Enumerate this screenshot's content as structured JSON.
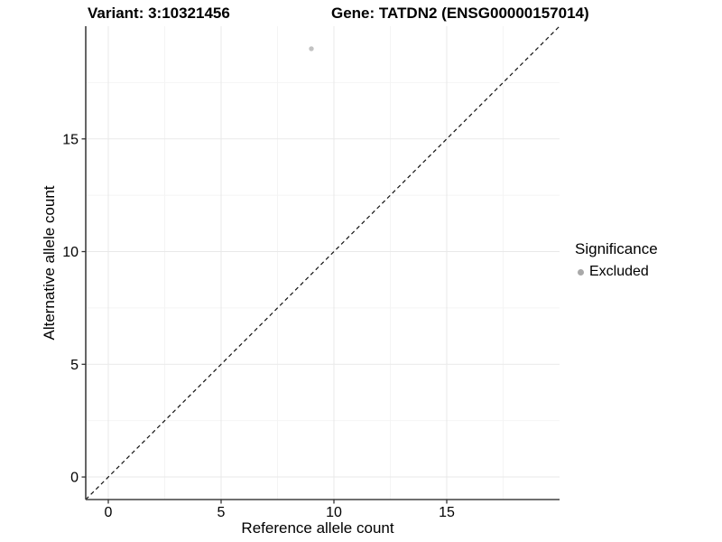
{
  "chart_data": {
    "type": "scatter",
    "titles": {
      "variant": "Variant: 3:10321456",
      "gene": "Gene: TATDN2 (ENSG00000157014)"
    },
    "xlabel": "Reference allele count",
    "ylabel": "Alternative allele count",
    "xlim": [
      -1,
      20
    ],
    "ylim": [
      -1,
      20
    ],
    "x_ticks": [
      0,
      5,
      10,
      15
    ],
    "y_ticks": [
      0,
      5,
      10,
      15
    ],
    "x_minor_gridlines": [
      2.5,
      7.5,
      12.5,
      17.5
    ],
    "y_minor_gridlines": [
      2.5,
      7.5,
      12.5,
      17.5
    ],
    "grid": "major and minor, light gray on white panel",
    "points": [
      {
        "x": 9,
        "y": 19,
        "series": "Excluded"
      }
    ],
    "identity_line": {
      "slope": 1,
      "intercept": 0,
      "style": "dashed"
    },
    "legend": {
      "title": "Significance",
      "position": "right",
      "items": [
        {
          "label": "Excluded",
          "marker": "circle",
          "color": "#a9a9a9"
        }
      ]
    },
    "colors": {
      "point": "#c2c2c2",
      "grid_major": "#e9e9e9",
      "grid_minor": "#f4f4f4",
      "axis_line": "#404040",
      "tick": "#333333",
      "dashed_line": "#111111",
      "text": "#000000"
    }
  }
}
